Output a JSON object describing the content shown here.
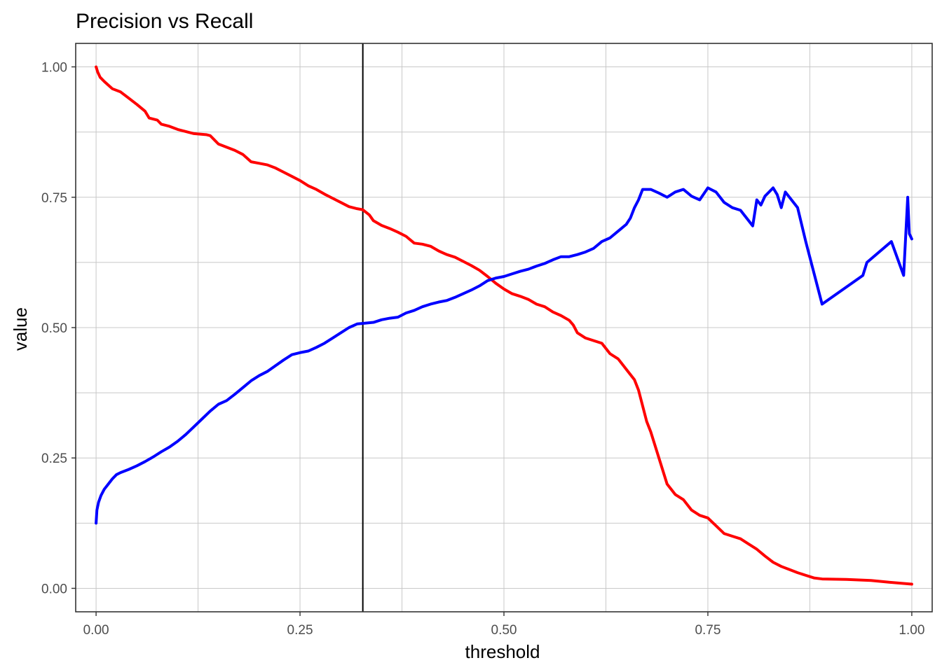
{
  "chart_data": {
    "type": "line",
    "title": "Precision vs Recall",
    "xlabel": "threshold",
    "ylabel": "value",
    "xlim": [
      -0.025,
      1.025
    ],
    "ylim": [
      -0.045,
      1.045
    ],
    "x_ticks": [
      0,
      0.25,
      0.5,
      0.75,
      1
    ],
    "x_tick_labels": [
      "0.00",
      "0.25",
      "0.50",
      "0.75",
      "1.00"
    ],
    "y_ticks": [
      0,
      0.25,
      0.5,
      0.75,
      1
    ],
    "y_tick_labels": [
      "0.00",
      "0.25",
      "0.50",
      "0.75",
      "1.00"
    ],
    "grid": true,
    "legend": "none",
    "vline": {
      "x": 0.327,
      "color": "#000000"
    },
    "series": [
      {
        "color": "#ff0000",
        "points": [
          [
            0.0,
            1.0
          ],
          [
            0.002,
            0.99
          ],
          [
            0.005,
            0.98
          ],
          [
            0.01,
            0.972
          ],
          [
            0.015,
            0.965
          ],
          [
            0.02,
            0.958
          ],
          [
            0.03,
            0.952
          ],
          [
            0.04,
            0.94
          ],
          [
            0.05,
            0.928
          ],
          [
            0.06,
            0.915
          ],
          [
            0.065,
            0.902
          ],
          [
            0.075,
            0.898
          ],
          [
            0.08,
            0.89
          ],
          [
            0.09,
            0.886
          ],
          [
            0.1,
            0.88
          ],
          [
            0.11,
            0.876
          ],
          [
            0.12,
            0.872
          ],
          [
            0.135,
            0.87
          ],
          [
            0.14,
            0.868
          ],
          [
            0.145,
            0.86
          ],
          [
            0.15,
            0.852
          ],
          [
            0.16,
            0.846
          ],
          [
            0.17,
            0.84
          ],
          [
            0.18,
            0.832
          ],
          [
            0.185,
            0.825
          ],
          [
            0.19,
            0.818
          ],
          [
            0.2,
            0.815
          ],
          [
            0.21,
            0.812
          ],
          [
            0.22,
            0.806
          ],
          [
            0.23,
            0.798
          ],
          [
            0.24,
            0.79
          ],
          [
            0.25,
            0.782
          ],
          [
            0.26,
            0.772
          ],
          [
            0.27,
            0.765
          ],
          [
            0.28,
            0.756
          ],
          [
            0.29,
            0.748
          ],
          [
            0.3,
            0.74
          ],
          [
            0.31,
            0.732
          ],
          [
            0.32,
            0.728
          ],
          [
            0.327,
            0.726
          ],
          [
            0.335,
            0.716
          ],
          [
            0.34,
            0.705
          ],
          [
            0.35,
            0.696
          ],
          [
            0.36,
            0.69
          ],
          [
            0.37,
            0.683
          ],
          [
            0.38,
            0.675
          ],
          [
            0.39,
            0.662
          ],
          [
            0.4,
            0.66
          ],
          [
            0.41,
            0.656
          ],
          [
            0.42,
            0.647
          ],
          [
            0.43,
            0.64
          ],
          [
            0.44,
            0.635
          ],
          [
            0.45,
            0.627
          ],
          [
            0.46,
            0.619
          ],
          [
            0.47,
            0.61
          ],
          [
            0.48,
            0.598
          ],
          [
            0.49,
            0.585
          ],
          [
            0.5,
            0.574
          ],
          [
            0.51,
            0.565
          ],
          [
            0.52,
            0.56
          ],
          [
            0.53,
            0.554
          ],
          [
            0.54,
            0.545
          ],
          [
            0.55,
            0.54
          ],
          [
            0.56,
            0.53
          ],
          [
            0.57,
            0.523
          ],
          [
            0.58,
            0.514
          ],
          [
            0.585,
            0.505
          ],
          [
            0.59,
            0.49
          ],
          [
            0.6,
            0.48
          ],
          [
            0.61,
            0.475
          ],
          [
            0.62,
            0.47
          ],
          [
            0.63,
            0.45
          ],
          [
            0.64,
            0.44
          ],
          [
            0.65,
            0.42
          ],
          [
            0.66,
            0.4
          ],
          [
            0.665,
            0.38
          ],
          [
            0.67,
            0.35
          ],
          [
            0.675,
            0.32
          ],
          [
            0.68,
            0.3
          ],
          [
            0.69,
            0.25
          ],
          [
            0.7,
            0.2
          ],
          [
            0.71,
            0.18
          ],
          [
            0.72,
            0.17
          ],
          [
            0.73,
            0.15
          ],
          [
            0.74,
            0.14
          ],
          [
            0.75,
            0.135
          ],
          [
            0.76,
            0.12
          ],
          [
            0.77,
            0.105
          ],
          [
            0.78,
            0.1
          ],
          [
            0.79,
            0.095
          ],
          [
            0.8,
            0.085
          ],
          [
            0.81,
            0.075
          ],
          [
            0.82,
            0.062
          ],
          [
            0.83,
            0.05
          ],
          [
            0.84,
            0.042
          ],
          [
            0.85,
            0.036
          ],
          [
            0.86,
            0.03
          ],
          [
            0.87,
            0.025
          ],
          [
            0.88,
            0.02
          ],
          [
            0.89,
            0.018
          ],
          [
            0.92,
            0.017
          ],
          [
            0.95,
            0.015
          ],
          [
            0.97,
            0.012
          ],
          [
            1.0,
            0.008
          ]
        ]
      },
      {
        "color": "#0000ff",
        "points": [
          [
            0.0,
            0.125
          ],
          [
            0.001,
            0.15
          ],
          [
            0.003,
            0.165
          ],
          [
            0.006,
            0.178
          ],
          [
            0.01,
            0.19
          ],
          [
            0.015,
            0.2
          ],
          [
            0.02,
            0.21
          ],
          [
            0.025,
            0.218
          ],
          [
            0.03,
            0.222
          ],
          [
            0.04,
            0.228
          ],
          [
            0.05,
            0.235
          ],
          [
            0.06,
            0.243
          ],
          [
            0.07,
            0.252
          ],
          [
            0.08,
            0.262
          ],
          [
            0.09,
            0.271
          ],
          [
            0.1,
            0.282
          ],
          [
            0.11,
            0.295
          ],
          [
            0.12,
            0.31
          ],
          [
            0.13,
            0.325
          ],
          [
            0.14,
            0.34
          ],
          [
            0.15,
            0.353
          ],
          [
            0.16,
            0.36
          ],
          [
            0.17,
            0.372
          ],
          [
            0.18,
            0.385
          ],
          [
            0.19,
            0.398
          ],
          [
            0.2,
            0.408
          ],
          [
            0.21,
            0.416
          ],
          [
            0.22,
            0.427
          ],
          [
            0.23,
            0.438
          ],
          [
            0.24,
            0.448
          ],
          [
            0.25,
            0.452
          ],
          [
            0.26,
            0.455
          ],
          [
            0.27,
            0.462
          ],
          [
            0.28,
            0.47
          ],
          [
            0.29,
            0.48
          ],
          [
            0.3,
            0.49
          ],
          [
            0.31,
            0.5
          ],
          [
            0.32,
            0.507
          ],
          [
            0.327,
            0.508
          ],
          [
            0.34,
            0.51
          ],
          [
            0.35,
            0.515
          ],
          [
            0.36,
            0.518
          ],
          [
            0.37,
            0.52
          ],
          [
            0.38,
            0.528
          ],
          [
            0.39,
            0.533
          ],
          [
            0.4,
            0.54
          ],
          [
            0.41,
            0.545
          ],
          [
            0.42,
            0.549
          ],
          [
            0.43,
            0.552
          ],
          [
            0.44,
            0.558
          ],
          [
            0.45,
            0.565
          ],
          [
            0.46,
            0.572
          ],
          [
            0.47,
            0.58
          ],
          [
            0.48,
            0.59
          ],
          [
            0.49,
            0.595
          ],
          [
            0.5,
            0.598
          ],
          [
            0.51,
            0.603
          ],
          [
            0.52,
            0.608
          ],
          [
            0.53,
            0.612
          ],
          [
            0.54,
            0.618
          ],
          [
            0.55,
            0.623
          ],
          [
            0.56,
            0.63
          ],
          [
            0.57,
            0.636
          ],
          [
            0.58,
            0.636
          ],
          [
            0.59,
            0.64
          ],
          [
            0.6,
            0.645
          ],
          [
            0.61,
            0.652
          ],
          [
            0.62,
            0.665
          ],
          [
            0.63,
            0.672
          ],
          [
            0.64,
            0.685
          ],
          [
            0.65,
            0.698
          ],
          [
            0.655,
            0.71
          ],
          [
            0.66,
            0.73
          ],
          [
            0.665,
            0.745
          ],
          [
            0.67,
            0.765
          ],
          [
            0.68,
            0.765
          ],
          [
            0.69,
            0.758
          ],
          [
            0.7,
            0.75
          ],
          [
            0.71,
            0.76
          ],
          [
            0.72,
            0.765
          ],
          [
            0.73,
            0.752
          ],
          [
            0.74,
            0.745
          ],
          [
            0.75,
            0.768
          ],
          [
            0.76,
            0.76
          ],
          [
            0.77,
            0.74
          ],
          [
            0.78,
            0.73
          ],
          [
            0.79,
            0.725
          ],
          [
            0.8,
            0.705
          ],
          [
            0.805,
            0.695
          ],
          [
            0.81,
            0.745
          ],
          [
            0.815,
            0.735
          ],
          [
            0.82,
            0.752
          ],
          [
            0.83,
            0.768
          ],
          [
            0.835,
            0.755
          ],
          [
            0.84,
            0.73
          ],
          [
            0.845,
            0.76
          ],
          [
            0.86,
            0.73
          ],
          [
            0.87,
            0.665
          ],
          [
            0.89,
            0.545
          ],
          [
            0.94,
            0.6
          ],
          [
            0.945,
            0.625
          ],
          [
            0.975,
            0.665
          ],
          [
            0.99,
            0.6
          ],
          [
            0.995,
            0.75
          ],
          [
            0.997,
            0.68
          ],
          [
            1.0,
            0.67
          ]
        ]
      }
    ]
  }
}
